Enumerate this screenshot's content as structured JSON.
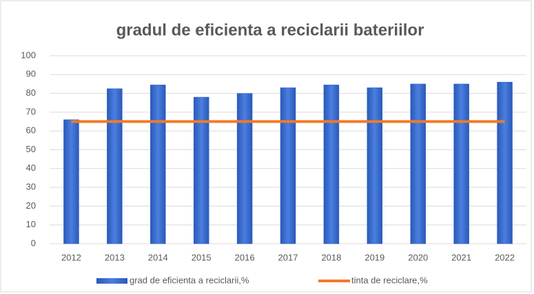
{
  "chart_data": {
    "type": "bar",
    "title": "gradul de eficienta a reciclarii bateriilor",
    "categories": [
      "2012",
      "2013",
      "2014",
      "2015",
      "2016",
      "2017",
      "2018",
      "2019",
      "2020",
      "2021",
      "2022"
    ],
    "series": [
      {
        "name": "grad de eficienta a reciclarii,%",
        "type": "bar",
        "color": "#3366cc",
        "values": [
          66,
          82.5,
          84.5,
          78,
          80,
          83,
          84.5,
          83,
          85,
          85,
          86
        ]
      },
      {
        "name": "tinta de reciclare,%",
        "type": "line",
        "color": "#f07a2a",
        "values": [
          65,
          65,
          65,
          65,
          65,
          65,
          65,
          65,
          65,
          65,
          65
        ]
      }
    ],
    "ylim": [
      0,
      100
    ],
    "yticks": [
      0,
      10,
      20,
      30,
      40,
      50,
      60,
      70,
      80,
      90,
      100
    ],
    "grid": true,
    "legend": "bottom"
  }
}
